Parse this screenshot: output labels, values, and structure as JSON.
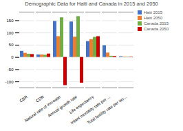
{
  "chart_data": {
    "type": "bar",
    "title": "Demographic Data for Haiti and Canada in 2015 and 2050",
    "categories": [
      "CBR",
      "CDR",
      "Natural rate of increase",
      "Annual growth rate",
      "Life expectancy",
      "Infant mortality rate per ...",
      "Total fertility rate per wo..."
    ],
    "series": [
      {
        "name": "Haiti 2015",
        "color": "#4472C4",
        "values": [
          25,
          10,
          147,
          145,
          65,
          48,
          3
        ]
      },
      {
        "name": "Haiti 2050",
        "color": "#ED7D31",
        "values": [
          17,
          10,
          85,
          83,
          73,
          18,
          2
        ]
      },
      {
        "name": "Canada 2015",
        "color": "#70AD47",
        "values": [
          13,
          9,
          162,
          167,
          82,
          5,
          1.6
        ]
      },
      {
        "name": "Canada 2050",
        "color": "#CC0000",
        "values": [
          12,
          14,
          -115,
          -105,
          85,
          4,
          1.5
        ]
      }
    ],
    "ylim": [
      -125,
      185
    ],
    "yticks": [
      -100,
      -50,
      0,
      50,
      100,
      150
    ],
    "grid": true,
    "legend": "upper right"
  }
}
